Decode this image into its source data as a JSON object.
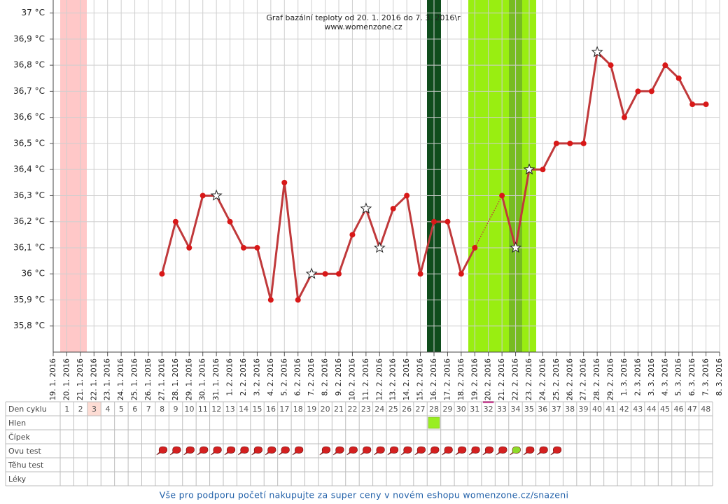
{
  "chart_data": {
    "type": "line",
    "title": "Graf bazální teploty od 20. 1. 2016 do 7. 3. 2016\\r",
    "subtitle": "www.womenzone.cz",
    "categories": [
      "19. 1. 2016",
      "20. 1. 2016",
      "21. 1. 2016",
      "22. 1. 2016",
      "23. 1. 2016",
      "24. 1. 2016",
      "25. 1. 2016",
      "26. 1. 2016",
      "27. 1. 2016",
      "28. 1. 2016",
      "29. 1. 2016",
      "30. 1. 2016",
      "31. 1. 2016",
      "1. 2. 2016",
      "2. 2. 2016",
      "3. 2. 2016",
      "4. 2. 2016",
      "5. 2. 2016",
      "6. 2. 2016",
      "7. 2. 2016",
      "8. 2. 2016",
      "9. 2. 2016",
      "10. 2. 2016",
      "11. 2. 2016",
      "12. 2. 2016",
      "13. 2. 2016",
      "14. 2. 2016",
      "15. 2. 2016",
      "16. 2. 2016",
      "17. 2. 2016",
      "18. 2. 2016",
      "19. 2. 2016",
      "20. 2. 2016",
      "21. 2. 2016",
      "22. 2. 2016",
      "23. 2. 2016",
      "24. 2. 2016",
      "25. 2. 2016",
      "26. 2. 2016",
      "27. 2. 2016",
      "28. 2. 2016",
      "29. 2. 2016",
      "1. 3. 2016",
      "2. 3. 2016",
      "3. 3. 2016",
      "4. 3. 2016",
      "5. 3. 2016",
      "6. 3. 2016",
      "7. 3. 2016",
      "8. 3. 2016"
    ],
    "values": [
      null,
      null,
      null,
      null,
      null,
      null,
      null,
      null,
      36,
      36.2,
      36.1,
      36.3,
      36.3,
      36.2,
      36.1,
      36.1,
      35.9,
      36.35,
      35.9,
      36,
      36,
      36,
      36.15,
      36.25,
      36.1,
      36.25,
      36.3,
      36,
      36.2,
      36.2,
      36,
      36.1,
      null,
      36.3,
      36.1,
      36.4,
      36.4,
      36.5,
      36.5,
      36.5,
      36.85,
      36.8,
      36.6,
      36.7,
      36.7,
      36.8,
      36.75,
      36.65,
      36.65,
      null
    ],
    "markers": [
      null,
      null,
      null,
      null,
      null,
      null,
      null,
      null,
      "dot",
      "dot",
      "dot",
      "dot",
      "star",
      "dot",
      "dot",
      "dot",
      "dot",
      "dot",
      "dot",
      "star",
      "dot",
      "dot",
      "dot",
      "star",
      "star",
      "dot",
      "dot",
      "dot",
      "dot",
      "dot",
      "dot",
      "dot",
      null,
      "dot",
      "star",
      "star",
      "dot",
      "dot",
      "dot",
      "dot",
      "star",
      "dot",
      "dot",
      "dot",
      "dot",
      "dot",
      "dot",
      "dot",
      "dot",
      null
    ],
    "color": "#c0393b",
    "ylim": [
      35.7,
      37.05
    ],
    "yticks": [
      {
        "value": 35.8,
        "label": "35,8 °C"
      },
      {
        "value": 35.9,
        "label": "35,9 °C"
      },
      {
        "value": 36,
        "label": "36 °C"
      },
      {
        "value": 36.1,
        "label": "36,1 °C"
      },
      {
        "value": 36.2,
        "label": "36,2 °C"
      },
      {
        "value": 36.3,
        "label": "36,3 °C"
      },
      {
        "value": 36.4,
        "label": "36,4 °C"
      },
      {
        "value": 36.5,
        "label": "36,5 °C"
      },
      {
        "value": 36.6,
        "label": "36,6 °C"
      },
      {
        "value": 36.7,
        "label": "36,7 °C"
      },
      {
        "value": 36.8,
        "label": "36,8 °C"
      },
      {
        "value": 36.9,
        "label": "36,9 °C"
      },
      {
        "value": 37,
        "label": "37 °C"
      }
    ],
    "grid": true
  },
  "table": {
    "row_labels": [
      "Den cyklu",
      "Hlen",
      "Čípek",
      "Ovu test",
      "Těhu test",
      "Léky"
    ],
    "days": [
      1,
      2,
      3,
      4,
      5,
      6,
      7,
      8,
      9,
      10,
      11,
      12,
      13,
      14,
      15,
      16,
      17,
      18,
      19,
      20,
      21,
      22,
      23,
      24,
      25,
      26,
      27,
      28,
      29,
      30,
      31,
      32,
      33,
      34,
      35,
      36,
      37,
      38,
      39,
      40,
      41,
      42,
      43,
      44,
      45,
      46,
      47,
      48
    ],
    "hlen": [
      null,
      null,
      null,
      null,
      null,
      null,
      null,
      null,
      null,
      null,
      null,
      null,
      null,
      null,
      null,
      null,
      null,
      null,
      null,
      null,
      null,
      null,
      null,
      null,
      null,
      null,
      null,
      "#99ee22",
      null,
      null,
      null,
      null,
      null,
      null,
      null,
      null,
      null,
      null,
      null,
      null,
      null,
      null,
      null,
      null,
      null,
      null,
      null,
      null
    ],
    "ovu_test": [
      null,
      null,
      null,
      null,
      null,
      null,
      null,
      "#d42020",
      "#d42020",
      "#d42020",
      "#d42020",
      "#d42020",
      "#d42020",
      "#d42020",
      "#d42020",
      "#d42020",
      "#d42020",
      "#d42020",
      null,
      "#d42020",
      "#d42020",
      "#d42020",
      "#d42020",
      "#d42020",
      "#d42020",
      "#d42020",
      "#d42020",
      "#d42020",
      "#d42020",
      "#d42020",
      "#d42020",
      "#d42020",
      "#d42020",
      "#8fdc2a",
      "#d42020",
      "#d42020",
      "#d42020",
      null,
      null,
      null,
      null,
      null,
      null,
      null,
      null,
      null,
      null,
      null
    ]
  },
  "footer": {
    "link": "Vše pro podporu početí nakupujte za super ceny v novém eshopu womenzone.cz/snazeni"
  }
}
